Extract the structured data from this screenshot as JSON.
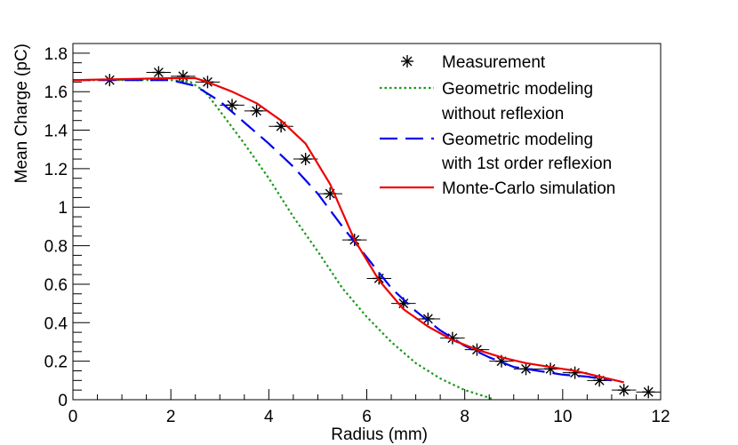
{
  "chart_data": {
    "type": "line",
    "title": "",
    "xlabel": "Radius (mm)",
    "ylabel": "Mean Charge (pC)",
    "xlim": [
      0,
      12
    ],
    "ylim": [
      0,
      1.85
    ],
    "x_ticks": [
      0,
      2,
      4,
      6,
      8,
      10,
      12
    ],
    "x_tick_labels": [
      "0",
      "2",
      "4",
      "6",
      "8",
      "10",
      "12"
    ],
    "y_ticks": [
      0,
      0.2,
      0.4,
      0.6,
      0.8,
      1.0,
      1.2,
      1.4,
      1.6,
      1.8
    ],
    "y_tick_labels": [
      "0",
      "0.2",
      "0.4",
      "0.6",
      "0.8",
      "1",
      "1.2",
      "1.4",
      "1.6",
      "1.8"
    ],
    "grid": false,
    "legend_position": "top-right",
    "legend": {
      "measurement": "Measurement",
      "geometric_no_reflexion_line1": "Geometric modeling",
      "geometric_no_reflexion_line2": "without reflexion",
      "geometric_reflexion_line1": "Geometric modeling",
      "geometric_reflexion_line2": "with 1st order reflexion",
      "monte_carlo": "Monte-Carlo simulation"
    },
    "series": [
      {
        "name": "Measurement",
        "style": "markers-star",
        "color": "#000000",
        "x": [
          0.75,
          1.75,
          2.25,
          2.75,
          3.25,
          3.75,
          4.25,
          4.75,
          5.25,
          5.75,
          6.25,
          6.75,
          7.25,
          7.75,
          8.25,
          8.75,
          9.25,
          9.75,
          10.25,
          10.75,
          11.25,
          11.75
        ],
        "y": [
          1.66,
          1.7,
          1.68,
          1.65,
          1.53,
          1.5,
          1.42,
          1.25,
          1.07,
          0.83,
          0.63,
          0.5,
          0.42,
          0.32,
          0.26,
          0.2,
          0.16,
          0.16,
          0.14,
          0.1,
          0.05,
          0.04
        ],
        "xerr": [
          0.25,
          0.25,
          0.25,
          0.25,
          0.25,
          0.25,
          0.25,
          0.25,
          0.25,
          0.25,
          0.25,
          0.25,
          0.25,
          0.25,
          0.25,
          0.25,
          0.25,
          0.25,
          0.25,
          0.25,
          0.25,
          0.25
        ]
      },
      {
        "name": "Geometric modeling without reflexion",
        "style": "dotted",
        "color": "#1a9a1a",
        "x": [
          0.0,
          2.0,
          2.4,
          2.7,
          3.0,
          3.5,
          4.0,
          4.5,
          5.0,
          5.5,
          6.0,
          6.5,
          7.0,
          7.5,
          8.0,
          8.5,
          8.6
        ],
        "y": [
          1.66,
          1.66,
          1.65,
          1.6,
          1.5,
          1.33,
          1.15,
          0.95,
          0.77,
          0.58,
          0.43,
          0.3,
          0.19,
          0.11,
          0.05,
          0.01,
          0.0
        ]
      },
      {
        "name": "Geometric modeling with 1st order reflexion",
        "style": "dashed",
        "color": "#0000ee",
        "x": [
          0.0,
          2.0,
          2.5,
          3.0,
          3.5,
          4.0,
          4.5,
          5.0,
          5.5,
          6.0,
          6.5,
          7.0,
          7.5,
          8.0,
          8.5,
          9.0,
          9.5,
          10.0,
          10.5,
          11.0
        ],
        "y": [
          1.66,
          1.66,
          1.63,
          1.55,
          1.44,
          1.33,
          1.21,
          1.07,
          0.9,
          0.74,
          0.58,
          0.46,
          0.36,
          0.28,
          0.22,
          0.17,
          0.15,
          0.13,
          0.12,
          0.1
        ]
      },
      {
        "name": "Monte-Carlo simulation",
        "style": "solid",
        "color": "#ee0000",
        "x": [
          0.0,
          2.0,
          2.5,
          2.75,
          3.25,
          3.75,
          4.25,
          4.75,
          5.25,
          5.75,
          6.25,
          6.75,
          7.25,
          7.75,
          8.25,
          8.75,
          9.25,
          9.75,
          10.25,
          10.75,
          11.25
        ],
        "y": [
          1.66,
          1.67,
          1.67,
          1.65,
          1.6,
          1.54,
          1.45,
          1.33,
          1.12,
          0.83,
          0.62,
          0.47,
          0.38,
          0.31,
          0.26,
          0.22,
          0.19,
          0.17,
          0.15,
          0.12,
          0.09
        ]
      }
    ]
  }
}
